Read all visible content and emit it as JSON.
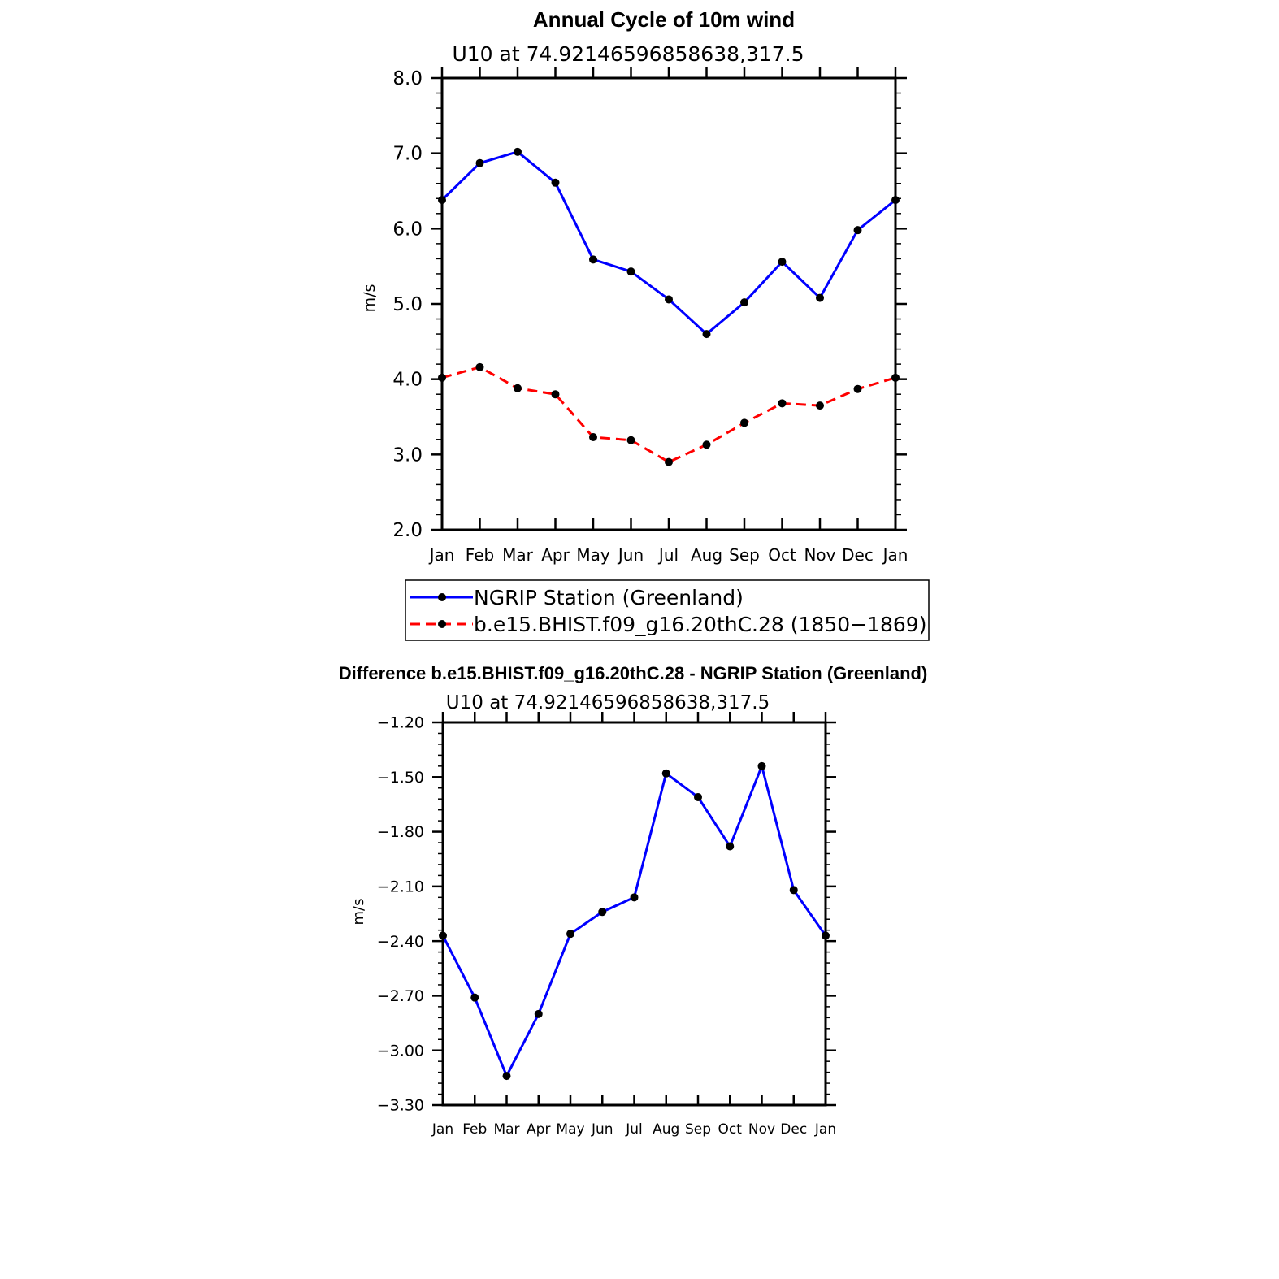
{
  "chart_data": [
    {
      "type": "line",
      "title": "Annual Cycle of 10m wind",
      "subtitle": "U10 at 74.92146596858638,317.5",
      "xlabel": "",
      "ylabel": "m/s",
      "categories": [
        "Jan",
        "Feb",
        "Mar",
        "Apr",
        "May",
        "Jun",
        "Jul",
        "Aug",
        "Sep",
        "Oct",
        "Nov",
        "Dec",
        "Jan"
      ],
      "ylim": [
        2.0,
        8.0
      ],
      "yticks": [
        "2.0",
        "3.0",
        "4.0",
        "5.0",
        "6.0",
        "7.0",
        "8.0"
      ],
      "grid": false,
      "legend_position": "below",
      "series": [
        {
          "name": "NGRIP Station (Greenland)",
          "color": "#0000ff",
          "dash": "solid",
          "values": [
            6.38,
            6.87,
            7.02,
            6.61,
            5.59,
            5.43,
            5.06,
            4.6,
            5.02,
            5.56,
            5.08,
            5.98,
            6.38
          ]
        },
        {
          "name": "b.e15.BHIST.f09_g16.20thC.28 (1850−1869)",
          "color": "#ff0000",
          "dash": "dashed",
          "values": [
            4.02,
            4.16,
            3.88,
            3.8,
            3.23,
            3.19,
            2.9,
            3.13,
            3.42,
            3.68,
            3.65,
            3.87,
            4.02
          ]
        }
      ]
    },
    {
      "type": "line",
      "title": "Difference b.e15.BHIST.f09_g16.20thC.28 - NGRIP Station (Greenland)",
      "subtitle": "U10 at 74.92146596858638,317.5",
      "xlabel": "",
      "ylabel": "m/s",
      "categories": [
        "Jan",
        "Feb",
        "Mar",
        "Apr",
        "May",
        "Jun",
        "Jul",
        "Aug",
        "Sep",
        "Oct",
        "Nov",
        "Dec",
        "Jan"
      ],
      "ylim": [
        -3.3,
        -1.2
      ],
      "yticks": [
        "−3.30",
        "−3.00",
        "−2.70",
        "−2.40",
        "−2.10",
        "−1.80",
        "−1.50",
        "−1.20"
      ],
      "grid": false,
      "series": [
        {
          "name": "",
          "color": "#0000ff",
          "dash": "solid",
          "values": [
            -2.37,
            -2.71,
            -3.14,
            -2.8,
            -2.36,
            -2.24,
            -2.16,
            -1.48,
            -1.61,
            -1.88,
            -1.44,
            -2.12,
            -2.37
          ]
        }
      ]
    }
  ]
}
